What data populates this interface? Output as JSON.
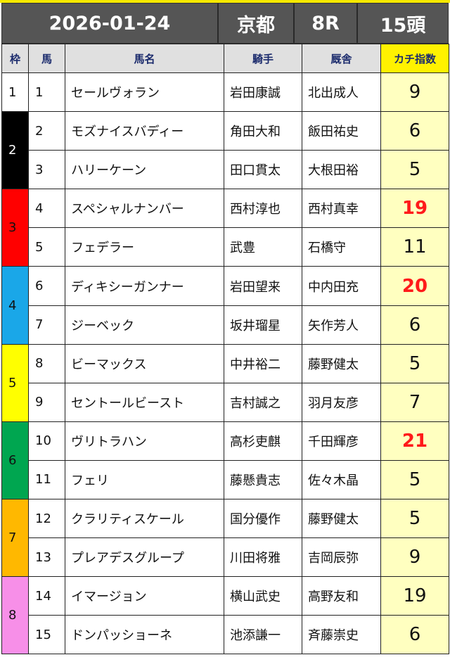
{
  "race": {
    "date": "2026-01-24",
    "venue": "京都",
    "race_no": "8R",
    "runners": "15頭"
  },
  "columns": {
    "waku": "枠",
    "umaban": "馬",
    "name": "馬名",
    "jockey": "騎手",
    "trainer": "厩舎",
    "kachi": "カチ指数"
  },
  "waku_colors": {
    "1": "#ffffff",
    "2": "#000000",
    "3": "#ff0000",
    "4": "#1aa7e8",
    "5": "#ffff00",
    "6": "#00a650",
    "7": "#ffb800",
    "8": "#f78fe8"
  },
  "waku_text_colors": {
    "1": "#111111",
    "2": "#ffffff",
    "3": "#111111",
    "4": "#111111",
    "5": "#111111",
    "6": "#111111",
    "7": "#111111",
    "8": "#111111"
  },
  "highlight_color": "#ff1a1a",
  "waku_groups": [
    {
      "waku": "1",
      "rows": 1
    },
    {
      "waku": "2",
      "rows": 2
    },
    {
      "waku": "3",
      "rows": 2
    },
    {
      "waku": "4",
      "rows": 2
    },
    {
      "waku": "5",
      "rows": 2
    },
    {
      "waku": "6",
      "rows": 2
    },
    {
      "waku": "7",
      "rows": 2
    },
    {
      "waku": "8",
      "rows": 2
    }
  ],
  "rows": [
    {
      "umaban": "1",
      "name": "セールヴォラン",
      "jockey": "岩田康誠",
      "trainer": "北出成人",
      "score": "9",
      "highlight": false
    },
    {
      "umaban": "2",
      "name": "モズナイスバディー",
      "jockey": "角田大和",
      "trainer": "飯田祐史",
      "score": "6",
      "highlight": false
    },
    {
      "umaban": "3",
      "name": "ハリーケーン",
      "jockey": "田口貫太",
      "trainer": "大根田裕",
      "score": "5",
      "highlight": false
    },
    {
      "umaban": "4",
      "name": "スペシャルナンバー",
      "jockey": "西村淳也",
      "trainer": "西村真幸",
      "score": "19",
      "highlight": true
    },
    {
      "umaban": "5",
      "name": "フェデラー",
      "jockey": "武豊",
      "trainer": "石橋守",
      "score": "11",
      "highlight": false
    },
    {
      "umaban": "6",
      "name": "ディキシーガンナー",
      "jockey": "岩田望来",
      "trainer": "中内田充",
      "score": "20",
      "highlight": true
    },
    {
      "umaban": "7",
      "name": "ジーベック",
      "jockey": "坂井瑠星",
      "trainer": "矢作芳人",
      "score": "6",
      "highlight": false
    },
    {
      "umaban": "8",
      "name": "ビーマックス",
      "jockey": "中井裕二",
      "trainer": "藤野健太",
      "score": "5",
      "highlight": false
    },
    {
      "umaban": "9",
      "name": "セントールビースト",
      "jockey": "吉村誠之",
      "trainer": "羽月友彦",
      "score": "7",
      "highlight": false
    },
    {
      "umaban": "10",
      "name": "ヴリトラハン",
      "jockey": "高杉吏麒",
      "trainer": "千田輝彦",
      "score": "21",
      "highlight": true
    },
    {
      "umaban": "11",
      "name": "フェリ",
      "jockey": "藤懸貴志",
      "trainer": "佐々木晶",
      "score": "5",
      "highlight": false
    },
    {
      "umaban": "12",
      "name": "クラリティスケール",
      "jockey": "国分優作",
      "trainer": "藤野健太",
      "score": "5",
      "highlight": false
    },
    {
      "umaban": "13",
      "name": "プレアデスグループ",
      "jockey": "川田将雅",
      "trainer": "吉岡辰弥",
      "score": "9",
      "highlight": false
    },
    {
      "umaban": "14",
      "name": "イマージョン",
      "jockey": "横山武史",
      "trainer": "高野友和",
      "score": "19",
      "highlight": false
    },
    {
      "umaban": "15",
      "name": "ドンパッショーネ",
      "jockey": "池添謙一",
      "trainer": "斉藤崇史",
      "score": "6",
      "highlight": false
    }
  ]
}
